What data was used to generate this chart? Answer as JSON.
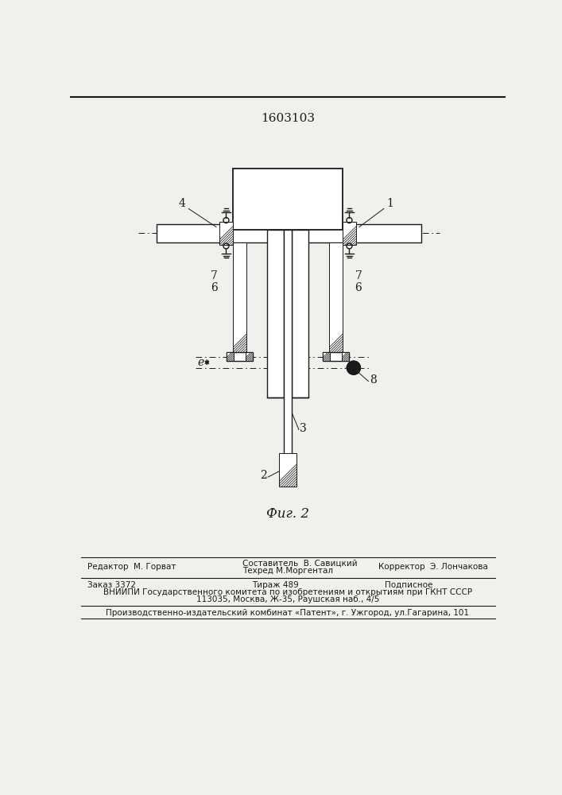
{
  "title": "1603103",
  "fig_label": "Фиг. 2",
  "bg_color": "#f2f0ec",
  "line_color": "#1a1a1a",
  "footer": {
    "line1_left": "Редактор  М. Горват",
    "line1_center_top": "Составитель  В. Савицкий",
    "line1_center_bot": "Техред М.Моргентал",
    "line1_right": "Корректор  Э. Лончакова",
    "line2_left": "Заказ 3372",
    "line2_center": "Тираж 489",
    "line2_right": "Подписное",
    "line3": "ВНИИПИ Государственного комитета по изобретениям и открытиям при ГКНТ СССР",
    "line4": "113035, Москва, Ж-35, Раушская наб., 4/5",
    "line5": "Производственно-издательский комбинат «Патент», г. Ужгород, ул.Гагарина, 101"
  }
}
